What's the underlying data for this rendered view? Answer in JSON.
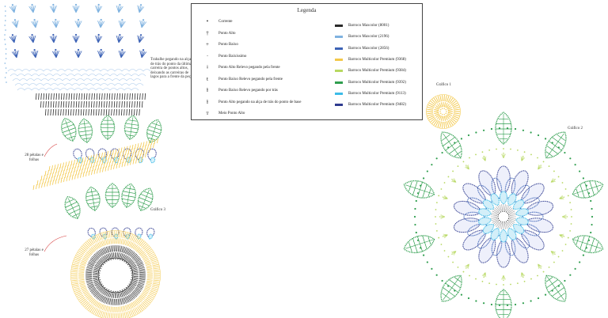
{
  "legend": {
    "title": "Legenda",
    "symbols": [
      {
        "glyph": "•",
        "label": "Corrente"
      },
      {
        "glyph": "†",
        "label": "Ponto Alto"
      },
      {
        "glyph": "+",
        "label": "Ponto Baixo"
      },
      {
        "glyph": "·",
        "label": "Ponto Baixíssimo"
      },
      {
        "glyph": "ǂ",
        "label": "Ponto Alto Relevo pegando pela frente"
      },
      {
        "glyph": "ŧ",
        "label": "Ponto Baixo Relevo pegando pela frente"
      },
      {
        "glyph": "ⱡ",
        "label": "Ponto Baixo Relevo pegando por trás"
      },
      {
        "glyph": "ɫ",
        "label": "Ponto Alto pegando na alça de trás do ponto de base"
      },
      {
        "glyph": "ᴛ",
        "label": "Meio Ponto Alto"
      }
    ],
    "colors": [
      {
        "label": "Barroco Maxcolor (8001)",
        "color": "#2a2a2a"
      },
      {
        "label": "Barroco Maxcolor (2196)",
        "color": "#7fb2e0"
      },
      {
        "label": "Barroco Maxcolor (2856)",
        "color": "#3d63b6"
      },
      {
        "label": "Barroco Multicolor Premium (9368)",
        "color": "#f3c84a"
      },
      {
        "label": "Barroco Multicolor Premium (9384)",
        "color": "#b7d861"
      },
      {
        "label": "Barroco Multicolor Premium (9392)",
        "color": "#2f9e4e"
      },
      {
        "label": "Barroco Multicolor Premium (9113)",
        "color": "#3cbce8"
      },
      {
        "label": "Barroco Multicolor Premium (9482)",
        "color": "#2f3b8f"
      }
    ]
  },
  "annotations": {
    "work_note": "Trabalhe pegando na alça de trás do ponto da última carreira de pontos altos, deixando as carreiras de lagos para a frente da peça.",
    "petals_28": "28 pétalas e folhas",
    "petals_27": "27 pétalas e folhas",
    "grafico_1": "Gráfico 1",
    "grafico_2": "Gráfico 2",
    "grafico_3": "Gráfico 3"
  }
}
